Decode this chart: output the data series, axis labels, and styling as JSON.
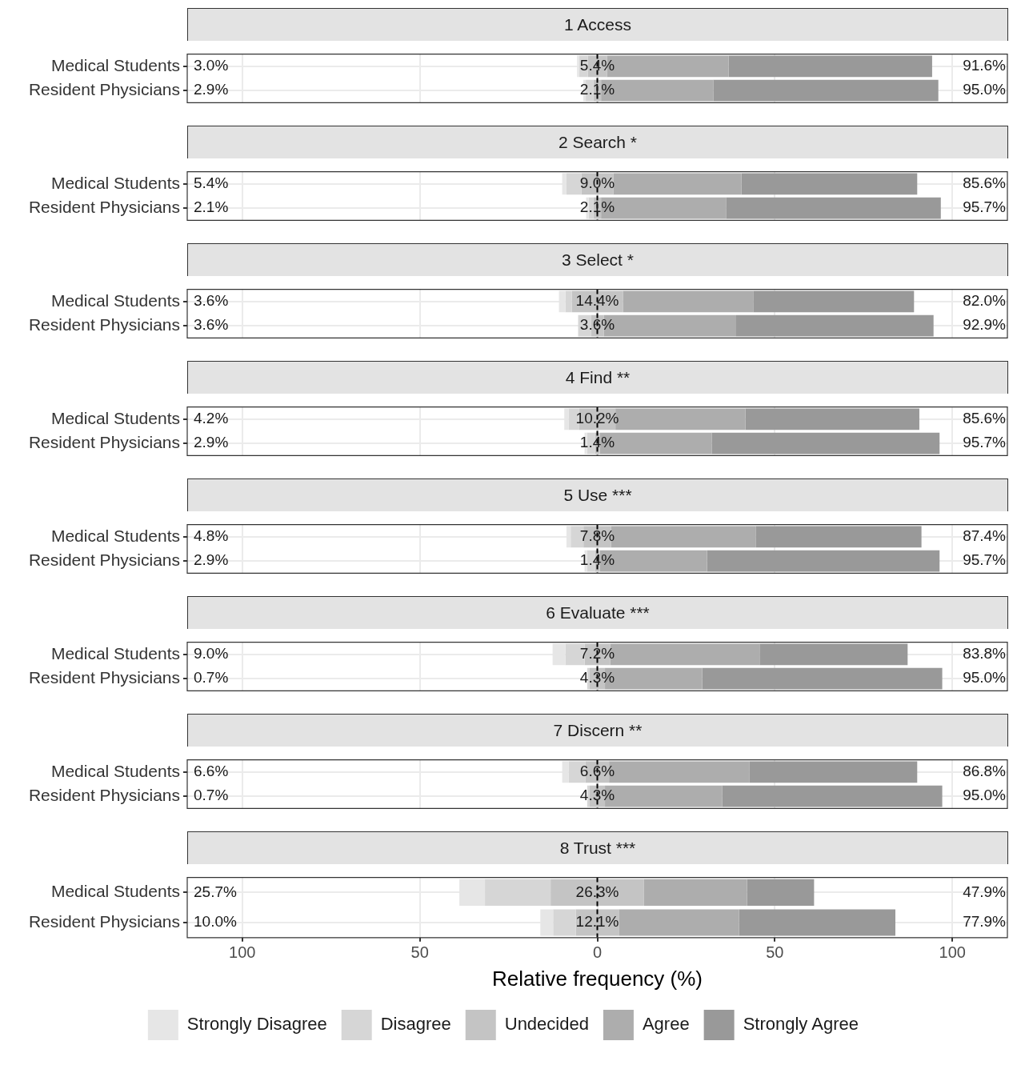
{
  "chart_data": [
    {
      "type": "bar",
      "orientation": "horizontal",
      "title": "1 Access",
      "categories": [
        "Medical Students",
        "Resident Physicians"
      ],
      "xlim": [
        -115.5,
        115.5
      ],
      "tick_labels": "y",
      "grid": true,
      "ref_lines": [
        {
          "axis": "x",
          "value": 0,
          "color": "#000000",
          "line_style": "dashed"
        }
      ],
      "series": [
        {
          "color": "#e6e6e6",
          "values": [
            0.6,
            0.7
          ],
          "base": [
            -5.7,
            -3.95
          ]
        },
        {
          "color": "#d6d6d6",
          "values": [
            2.4,
            2.2
          ],
          "base": [
            -5.1,
            -3.25
          ]
        },
        {
          "color": "#c4c4c4",
          "values": [
            5.4,
            2.1
          ],
          "base": [
            -2.7,
            -1.05
          ]
        },
        {
          "color": "#adadad",
          "values": [
            34.3,
            31.6
          ],
          "base": [
            2.7,
            1.05
          ]
        },
        {
          "color": "#999999",
          "values": [
            57.3,
            63.4
          ],
          "base": [
            37.0,
            32.65
          ]
        }
      ],
      "annotations": [
        "3.0%",
        "5.4%",
        "91.6%",
        "2.9%",
        "2.1%",
        "95.0%"
      ]
    },
    {
      "type": "bar",
      "orientation": "horizontal",
      "title": "2 Search *",
      "categories": [
        "Medical Students",
        "Resident Physicians"
      ],
      "xlim": [
        -115.5,
        115.5
      ],
      "tick_labels": "y",
      "grid": true,
      "ref_lines": [
        {
          "axis": "x",
          "value": 0,
          "color": "#000000",
          "line_style": "dashed"
        }
      ],
      "series": [
        {
          "color": "#e6e6e6",
          "values": [
            1.2,
            0.7
          ],
          "base": [
            -9.9,
            -3.15
          ]
        },
        {
          "color": "#d6d6d6",
          "values": [
            4.2,
            1.4
          ],
          "base": [
            -8.7,
            -2.45
          ]
        },
        {
          "color": "#c4c4c4",
          "values": [
            9.0,
            2.1
          ],
          "base": [
            -4.5,
            -1.05
          ]
        },
        {
          "color": "#adadad",
          "values": [
            36.1,
            35.2
          ],
          "base": [
            4.5,
            1.05
          ]
        },
        {
          "color": "#999999",
          "values": [
            49.5,
            60.5
          ],
          "base": [
            40.6,
            36.25
          ]
        }
      ],
      "annotations": [
        "5.4%",
        "9.0%",
        "85.6%",
        "2.1%",
        "2.1%",
        "95.7%"
      ]
    },
    {
      "type": "bar",
      "orientation": "horizontal",
      "title": "3 Select *",
      "categories": [
        "Medical Students",
        "Resident Physicians"
      ],
      "xlim": [
        -115.5,
        115.5
      ],
      "tick_labels": "y",
      "grid": true,
      "ref_lines": [
        {
          "axis": "x",
          "value": 0,
          "color": "#000000",
          "line_style": "dashed"
        }
      ],
      "series": [
        {
          "color": "#e6e6e6",
          "values": [
            1.8,
            null
          ],
          "base": [
            -10.8,
            null
          ]
        },
        {
          "color": "#d6d6d6",
          "values": [
            1.8,
            3.6
          ],
          "base": [
            -9.0,
            -5.4
          ]
        },
        {
          "color": "#c4c4c4",
          "values": [
            14.4,
            3.6
          ],
          "base": [
            -7.2,
            -1.8
          ]
        },
        {
          "color": "#adadad",
          "values": [
            36.7,
            37.3
          ],
          "base": [
            7.2,
            1.8
          ]
        },
        {
          "color": "#999999",
          "values": [
            45.3,
            55.6
          ],
          "base": [
            43.9,
            39.1
          ]
        }
      ],
      "annotations": [
        "3.6%",
        "14.4%",
        "82.0%",
        "3.6%",
        "3.6%",
        "92.9%"
      ]
    },
    {
      "type": "bar",
      "orientation": "horizontal",
      "title": "4 Find **",
      "categories": [
        "Medical Students",
        "Resident Physicians"
      ],
      "xlim": [
        -115.5,
        115.5
      ],
      "tick_labels": "y",
      "grid": true,
      "ref_lines": [
        {
          "axis": "x",
          "value": 0,
          "color": "#000000",
          "line_style": "dashed"
        }
      ],
      "series": [
        {
          "color": "#e6e6e6",
          "values": [
            1.2,
            0.7
          ],
          "base": [
            -9.3,
            -3.6
          ]
        },
        {
          "color": "#d6d6d6",
          "values": [
            3.0,
            2.2
          ],
          "base": [
            -8.1,
            -2.9
          ]
        },
        {
          "color": "#c4c4c4",
          "values": [
            10.2,
            1.4
          ],
          "base": [
            -5.1,
            -0.7
          ]
        },
        {
          "color": "#adadad",
          "values": [
            36.6,
            31.5
          ],
          "base": [
            5.1,
            0.7
          ]
        },
        {
          "color": "#999999",
          "values": [
            49.0,
            64.2
          ],
          "base": [
            41.7,
            32.2
          ]
        }
      ],
      "annotations": [
        "4.2%",
        "10.2%",
        "85.6%",
        "2.9%",
        "1.4%",
        "95.7%"
      ]
    },
    {
      "type": "bar",
      "orientation": "horizontal",
      "title": "5 Use ***",
      "categories": [
        "Medical Students",
        "Resident Physicians"
      ],
      "xlim": [
        -115.5,
        115.5
      ],
      "tick_labels": "y",
      "grid": true,
      "ref_lines": [
        {
          "axis": "x",
          "value": 0,
          "color": "#000000",
          "line_style": "dashed"
        }
      ],
      "series": [
        {
          "color": "#e6e6e6",
          "values": [
            1.2,
            0.7
          ],
          "base": [
            -8.7,
            -3.6
          ]
        },
        {
          "color": "#d6d6d6",
          "values": [
            3.6,
            2.2
          ],
          "base": [
            -7.5,
            -2.9
          ]
        },
        {
          "color": "#c4c4c4",
          "values": [
            7.8,
            1.4
          ],
          "base": [
            -3.9,
            -0.7
          ]
        },
        {
          "color": "#adadad",
          "values": [
            40.8,
            30.2
          ],
          "base": [
            3.9,
            0.7
          ]
        },
        {
          "color": "#999999",
          "values": [
            46.6,
            65.5
          ],
          "base": [
            44.7,
            30.9
          ]
        }
      ],
      "annotations": [
        "4.8%",
        "7.8%",
        "87.4%",
        "2.9%",
        "1.4%",
        "95.7%"
      ]
    },
    {
      "type": "bar",
      "orientation": "horizontal",
      "title": "6 Evaluate ***",
      "categories": [
        "Medical Students",
        "Resident Physicians"
      ],
      "xlim": [
        -115.5,
        115.5
      ],
      "tick_labels": "y",
      "grid": true,
      "ref_lines": [
        {
          "axis": "x",
          "value": 0,
          "color": "#000000",
          "line_style": "dashed"
        }
      ],
      "series": [
        {
          "color": "#e6e6e6",
          "values": [
            3.6,
            null
          ],
          "base": [
            -12.6,
            null
          ]
        },
        {
          "color": "#d6d6d6",
          "values": [
            5.4,
            0.7
          ],
          "base": [
            -9.0,
            -2.85
          ]
        },
        {
          "color": "#c4c4c4",
          "values": [
            7.2,
            4.3
          ],
          "base": [
            -3.6,
            -2.15
          ]
        },
        {
          "color": "#adadad",
          "values": [
            42.1,
            27.4
          ],
          "base": [
            3.6,
            2.15
          ]
        },
        {
          "color": "#999999",
          "values": [
            41.7,
            67.6
          ],
          "base": [
            45.7,
            29.55
          ]
        }
      ],
      "annotations": [
        "9.0%",
        "7.2%",
        "83.8%",
        "0.7%",
        "4.3%",
        "95.0%"
      ]
    },
    {
      "type": "bar",
      "orientation": "horizontal",
      "title": "7 Discern **",
      "categories": [
        "Medical Students",
        "Resident Physicians"
      ],
      "xlim": [
        -115.5,
        115.5
      ],
      "tick_labels": "y",
      "grid": true,
      "ref_lines": [
        {
          "axis": "x",
          "value": 0,
          "color": "#000000",
          "line_style": "dashed"
        }
      ],
      "series": [
        {
          "color": "#e6e6e6",
          "values": [
            1.8,
            null
          ],
          "base": [
            -9.9,
            null
          ]
        },
        {
          "color": "#d6d6d6",
          "values": [
            4.8,
            0.7
          ],
          "base": [
            -8.1,
            -2.85
          ]
        },
        {
          "color": "#c4c4c4",
          "values": [
            6.6,
            4.3
          ],
          "base": [
            -3.3,
            -2.15
          ]
        },
        {
          "color": "#adadad",
          "values": [
            39.6,
            33.0
          ],
          "base": [
            3.3,
            2.15
          ]
        },
        {
          "color": "#999999",
          "values": [
            47.2,
            62.0
          ],
          "base": [
            42.9,
            35.15
          ]
        }
      ],
      "annotations": [
        "6.6%",
        "6.6%",
        "86.8%",
        "0.7%",
        "4.3%",
        "95.0%"
      ]
    },
    {
      "type": "bar",
      "orientation": "horizontal",
      "title": "8 Trust ***",
      "xlabel": "Relative frequency (%)",
      "categories": [
        "Medical Students",
        "Resident Physicians"
      ],
      "xlim": [
        -115.5,
        115.5
      ],
      "xticks": [
        {
          "value": -100,
          "label": "100"
        },
        {
          "value": -50,
          "label": "50"
        },
        0,
        50,
        100
      ],
      "grid": true,
      "legend": "bottom",
      "ref_lines": [
        {
          "axis": "x",
          "value": 0,
          "color": "#000000",
          "line_style": "dashed"
        }
      ],
      "series": [
        {
          "name": "Strongly Disagree",
          "color": "#e6e6e6",
          "values": [
            7.2,
            3.6
          ],
          "base": [
            -38.85,
            -16.05
          ]
        },
        {
          "name": "Disagree",
          "color": "#d6d6d6",
          "values": [
            18.5,
            6.4
          ],
          "base": [
            -31.65,
            -12.45
          ]
        },
        {
          "name": "Undecided",
          "color": "#c4c4c4",
          "values": [
            26.3,
            12.1
          ],
          "base": [
            -13.15,
            -6.05
          ]
        },
        {
          "name": "Agree",
          "color": "#adadad",
          "values": [
            29.0,
            33.9
          ],
          "base": [
            13.15,
            6.05
          ]
        },
        {
          "name": "Strongly Agree",
          "color": "#999999",
          "values": [
            18.9,
            44.0
          ],
          "base": [
            42.15,
            39.95
          ]
        }
      ],
      "annotations": [
        "25.7%",
        "26.3%",
        "47.9%",
        "10.0%",
        "12.1%",
        "77.9%"
      ]
    }
  ]
}
